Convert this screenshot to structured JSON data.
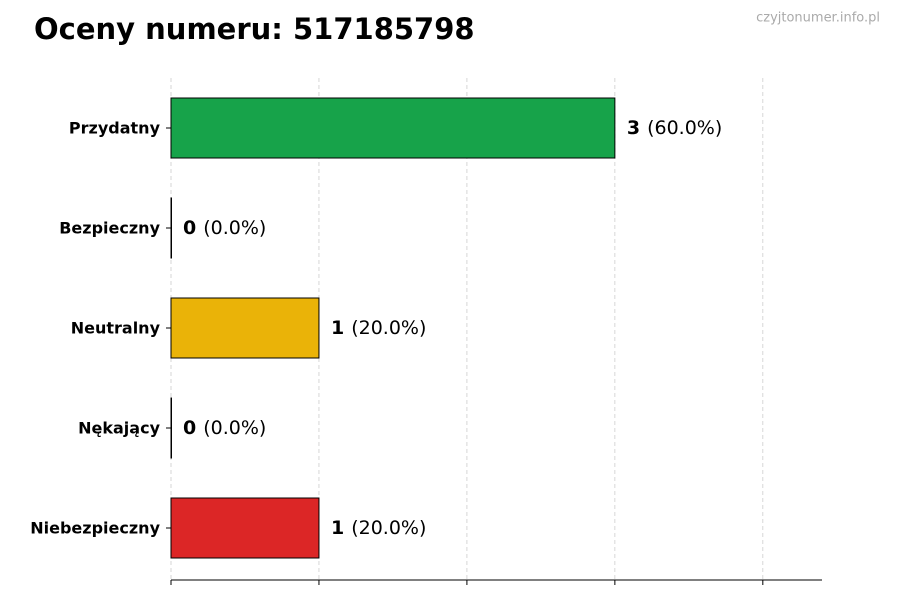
{
  "chart_data": {
    "type": "barh",
    "title": "Oceny numeru: 517185798",
    "watermark": "czyjtonumer.info.pl",
    "categories": [
      "Przydatny",
      "Bezpieczny",
      "Neutralny",
      "Nękający",
      "Niebezpieczny"
    ],
    "values": [
      3,
      0,
      1,
      0,
      1
    ],
    "share_labels": [
      "(60.0%)",
      "(0.0%)",
      "(20.0%)",
      "(0.0%)",
      "(20.0%)"
    ],
    "colors": [
      "#17a34a",
      "#3b82f6",
      "#eab308",
      "#f97316",
      "#dc2626"
    ],
    "xlim": [
      0,
      4.4
    ],
    "xticks": [
      0,
      1,
      2,
      3,
      4
    ],
    "grid": true
  }
}
